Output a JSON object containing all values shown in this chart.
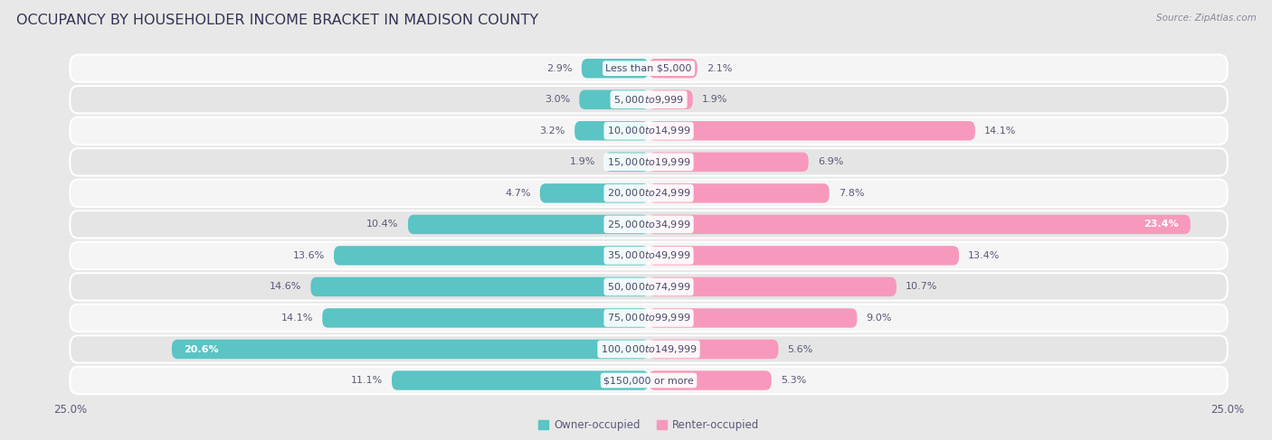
{
  "title": "OCCUPANCY BY HOUSEHOLDER INCOME BRACKET IN MADISON COUNTY",
  "source": "Source: ZipAtlas.com",
  "categories": [
    "Less than $5,000",
    "$5,000 to $9,999",
    "$10,000 to $14,999",
    "$15,000 to $19,999",
    "$20,000 to $24,999",
    "$25,000 to $34,999",
    "$35,000 to $49,999",
    "$50,000 to $74,999",
    "$75,000 to $99,999",
    "$100,000 to $149,999",
    "$150,000 or more"
  ],
  "owner_values": [
    2.9,
    3.0,
    3.2,
    1.9,
    4.7,
    10.4,
    13.6,
    14.6,
    14.1,
    20.6,
    11.1
  ],
  "renter_values": [
    2.1,
    1.9,
    14.1,
    6.9,
    7.8,
    23.4,
    13.4,
    10.7,
    9.0,
    5.6,
    5.3
  ],
  "owner_color": "#5bc4c4",
  "renter_color": "#f799bc",
  "owner_label": "Owner-occupied",
  "renter_label": "Renter-occupied",
  "axis_limit": 25.0,
  "bg_outer": "#e8e8e8",
  "row_bg_light": "#f5f5f5",
  "row_bg_dark": "#e5e5e5",
  "title_fontsize": 11.5,
  "label_fontsize": 8.0,
  "value_fontsize": 8.0,
  "tick_fontsize": 8.5,
  "source_fontsize": 7.5
}
